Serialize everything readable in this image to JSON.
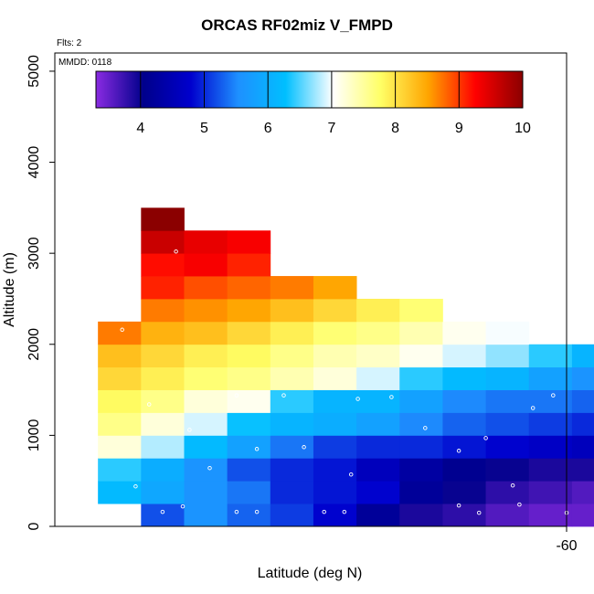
{
  "chart_data": {
    "type": "heatmap",
    "title": "ORCAS RF02miz V_FMPD",
    "flights_label": "Flts: 2",
    "date_label": "MMDD: 0118",
    "xlabel": "Latitude (deg N)",
    "ylabel": "Altitude (m)",
    "xlim": [
      -67.6,
      -60
    ],
    "ylim": [
      0,
      5200
    ],
    "x_ticks": [
      -60
    ],
    "x_tick_labels": [
      "-60"
    ],
    "y_ticks": [
      0,
      1000,
      2000,
      3000,
      4000,
      5000
    ],
    "y_tick_labels": [
      "0",
      "1000",
      "2000",
      "3000",
      "4000",
      "5000"
    ],
    "colorbar": {
      "vmin": 3.3,
      "vmax": 10,
      "ticks": [
        4,
        5,
        6,
        7,
        8,
        9,
        10
      ],
      "tick_labels": [
        "4",
        "5",
        "6",
        "7",
        "8",
        "9",
        "10"
      ],
      "colors": [
        "#8a2be2",
        "#00008b",
        "#0000cd",
        "#1e90ff",
        "#00bfff",
        "#ffffff",
        "#ffff66",
        "#ffa500",
        "#ff0000",
        "#8b0000"
      ]
    },
    "cell_size": {
      "lat": 0.64,
      "alt": 250
    },
    "rows": [
      {
        "alt": 125,
        "lat_start": -66.32,
        "values": [
          5.2,
          5.6,
          5.3,
          5.1,
          4.8,
          4.2,
          3.9,
          3.8,
          3.6,
          3.5,
          3.5,
          3.4
        ]
      },
      {
        "alt": 375,
        "lat_start": -66.96,
        "values": [
          6.2,
          5.9,
          5.6,
          5.4,
          5.0,
          4.9,
          4.8,
          4.2,
          4.0,
          3.8,
          3.7,
          3.6,
          3.5
        ]
      },
      {
        "alt": 625,
        "lat_start": -66.96,
        "values": [
          6.4,
          6.0,
          5.6,
          5.2,
          5.0,
          4.9,
          4.6,
          4.3,
          4.1,
          4.0,
          3.9,
          3.9,
          3.9
        ]
      },
      {
        "alt": 875,
        "lat_start": -66.96,
        "values": [
          7.2,
          6.8,
          6.2,
          5.8,
          5.4,
          5.1,
          5.0,
          5.0,
          4.9,
          4.8,
          4.7,
          4.6,
          4.2
        ]
      },
      {
        "alt": 1125,
        "lat_start": -66.96,
        "values": [
          7.6,
          7.2,
          6.9,
          6.3,
          6.1,
          6.0,
          5.8,
          5.5,
          5.3,
          5.2,
          5.1,
          5.0,
          4.8
        ]
      },
      {
        "alt": 1375,
        "lat_start": -66.96,
        "values": [
          7.8,
          7.6,
          7.2,
          7.1,
          6.4,
          6.1,
          6.1,
          5.8,
          5.5,
          5.4,
          5.4,
          5.3,
          5.2
        ]
      },
      {
        "alt": 1625,
        "lat_start": -66.96,
        "values": [
          8.1,
          7.9,
          7.7,
          7.6,
          7.4,
          7.2,
          6.9,
          6.4,
          6.2,
          6.1,
          5.8,
          5.6
        ]
      },
      {
        "alt": 1875,
        "lat_start": -66.96,
        "values": [
          8.3,
          8.1,
          7.9,
          7.8,
          7.6,
          7.4,
          7.3,
          7.1,
          6.9,
          6.7,
          6.4,
          6.1
        ]
      },
      {
        "alt": 2125,
        "lat_start": -66.96,
        "values": [
          8.7,
          8.4,
          8.3,
          8.1,
          7.9,
          7.7,
          7.6,
          7.4,
          7.1,
          7.0
        ]
      },
      {
        "alt": 2375,
        "lat_start": -66.32,
        "values": [
          8.7,
          8.6,
          8.5,
          8.3,
          8.1,
          7.9,
          7.7
        ]
      },
      {
        "alt": 2625,
        "lat_start": -66.32,
        "values": [
          9.1,
          8.9,
          8.8,
          8.7,
          8.5
        ]
      },
      {
        "alt": 2875,
        "lat_start": -66.32,
        "values": [
          9.2,
          9.3,
          9.1
        ]
      },
      {
        "alt": 3125,
        "lat_start": -66.32,
        "values": [
          9.6,
          9.4,
          9.3
        ]
      },
      {
        "alt": 3375,
        "lat_start": -66.32,
        "values": [
          10.0
        ]
      }
    ],
    "markers": [
      [
        -65.8,
        3020
      ],
      [
        -66.6,
        2160
      ],
      [
        -66.2,
        1340
      ],
      [
        -64.9,
        1440
      ],
      [
        -64.2,
        1440
      ],
      [
        -63.1,
        1400
      ],
      [
        -62.6,
        1420
      ],
      [
        -60.2,
        1440
      ],
      [
        -60.5,
        1300
      ],
      [
        -62.1,
        1080
      ],
      [
        -66.4,
        440
      ],
      [
        -65.6,
        1060
      ],
      [
        -64.6,
        850
      ],
      [
        -63.9,
        870
      ],
      [
        -61.2,
        970
      ],
      [
        -65.3,
        640
      ],
      [
        -63.2,
        570
      ],
      [
        -61.6,
        830
      ],
      [
        -60.8,
        450
      ],
      [
        -65.7,
        220
      ],
      [
        -66.0,
        160
      ],
      [
        -64.9,
        160
      ],
      [
        -64.6,
        160
      ],
      [
        -63.6,
        160
      ],
      [
        -63.3,
        160
      ],
      [
        -61.6,
        230
      ],
      [
        -61.3,
        150
      ],
      [
        -60.7,
        240
      ],
      [
        -60.0,
        150
      ]
    ]
  }
}
